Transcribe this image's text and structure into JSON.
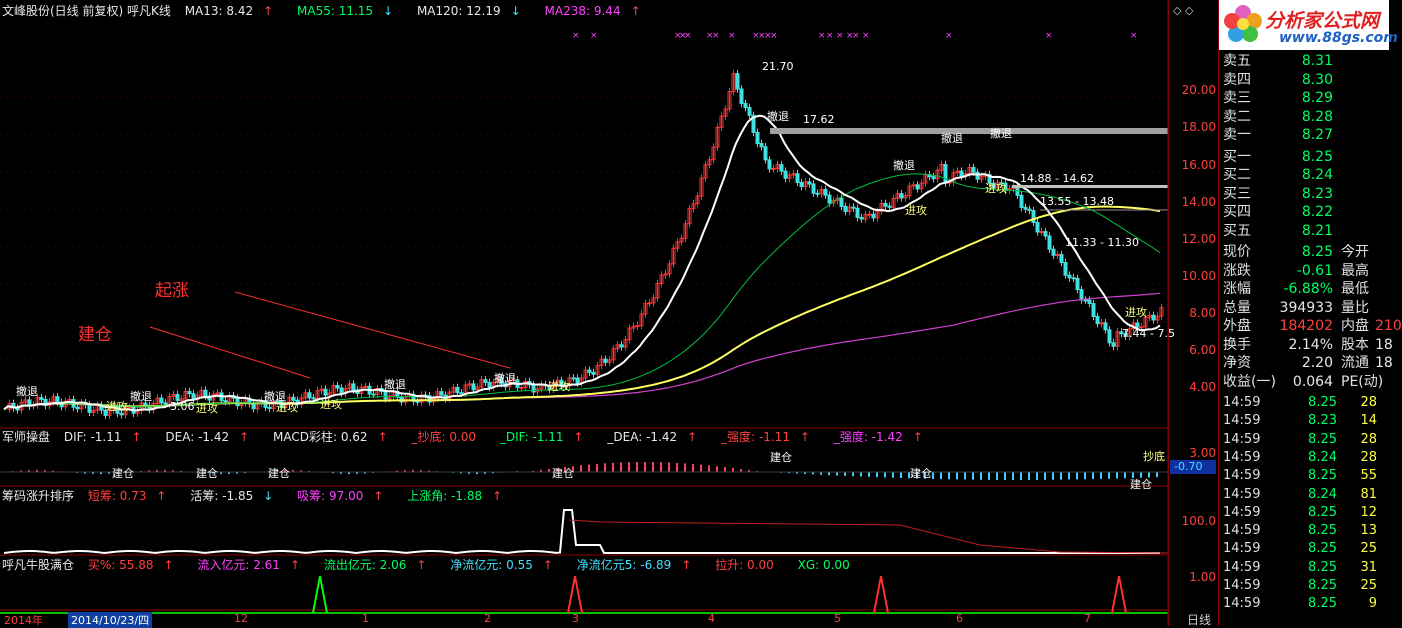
{
  "header": {
    "title": "文峰股份(日线 前复权) 呼凡K线",
    "ma13": "MA13: 8.42",
    "ma55": "MA55: 11.15",
    "ma120": "MA120: 12.19",
    "ma238": "MA238: 9.44"
  },
  "panel2": {
    "name": "军师操盘",
    "dif": "DIF: -1.11",
    "dea": "DEA: -1.42",
    "macd": "MACD彩柱: 0.62",
    "chaodi": "_抄底: 0.00",
    "dif2": "_DIF: -1.11",
    "dea2": "_DEA: -1.42",
    "qiangdu1": "_强度: -1.11",
    "qiangdu2": "_强度: -1.42",
    "axis_top": "3.00",
    "axis_val": "-0.70",
    "chaodi_label": "抄底"
  },
  "panel3": {
    "name": "筹码涨升排序",
    "duanchou": "短筹: 0.73",
    "huochou": "活筹: -1.85",
    "xichou": "吸筹: 97.00",
    "shangzhang": "上涨角: -1.88",
    "axis": "100.0"
  },
  "panel4": {
    "name": "呼凡牛股满仓",
    "mai": "买%: 55.88",
    "liuru": "流入亿元: 2.61",
    "liuchu": "流出亿元: 2.06",
    "jingliu": "净流亿元: 0.55",
    "jingliu5": "净流亿元5: -6.89",
    "lasheng": "拉升: 0.00",
    "xg": "XG: 0.00",
    "axis": "1.00"
  },
  "annotations": {
    "qizhang": "起涨",
    "jiancang": "建仓"
  },
  "chart_labels": {
    "peak": "21.70",
    "lvl1": "17.62",
    "lvl2": "14.88 - 14.62",
    "lvl3": "13.55 - 13.48",
    "lvl4": "11.33 - 11.30",
    "lvl5": "7.44 - 7.5",
    "low1": "3.06",
    "chetui": "撤退",
    "jingong": "进攻",
    "jiancang2": "建仓"
  },
  "price_axis": [
    "20.00",
    "18.00",
    "16.00",
    "14.00",
    "12.00",
    "10.00",
    "8.00",
    "6.00",
    "4.00"
  ],
  "x_axis": {
    "year": "2014年",
    "date": "2014/10/23/四",
    "months": [
      "12",
      "1",
      "2",
      "3",
      "4",
      "5",
      "6",
      "7"
    ],
    "period": "日线"
  },
  "logo": {
    "name": "分析家公式网",
    "url": "www.88gs.com"
  },
  "quote": {
    "sell": [
      {
        "label": "卖五",
        "price": "8.31"
      },
      {
        "label": "卖四",
        "price": "8.30"
      },
      {
        "label": "卖三",
        "price": "8.29"
      },
      {
        "label": "卖二",
        "price": "8.28"
      },
      {
        "label": "卖一",
        "price": "8.27"
      }
    ],
    "buy": [
      {
        "label": "买一",
        "price": "8.25"
      },
      {
        "label": "买二",
        "price": "8.24"
      },
      {
        "label": "买三",
        "price": "8.23"
      },
      {
        "label": "买四",
        "price": "8.22"
      },
      {
        "label": "买五",
        "price": "8.21"
      }
    ],
    "stats": [
      {
        "l1": "现价",
        "v1": "8.25",
        "l2": "今开",
        "c": "g"
      },
      {
        "l1": "涨跌",
        "v1": "-0.61",
        "l2": "最高",
        "c": "g"
      },
      {
        "l1": "涨幅",
        "v1": "-6.88%",
        "l2": "最低",
        "c": "g"
      },
      {
        "l1": "总量",
        "v1": "394933",
        "l2": "量比",
        "c": "w"
      },
      {
        "l1": "外盘",
        "v1": "184202",
        "l2": "内盘",
        "v2": "210",
        "c": "r"
      },
      {
        "l1": "换手",
        "v1": "2.14%",
        "l2": "股本",
        "v2": "18",
        "c": "w"
      },
      {
        "l1": "净资",
        "v1": "2.20",
        "l2": "流通",
        "v2": "18",
        "c": "w"
      },
      {
        "l1": "收益(一)",
        "v1": "0.064",
        "l2": "PE(动)",
        "c": "w"
      }
    ],
    "ticks": [
      {
        "t": "14:59",
        "p": "8.25",
        "v": "28"
      },
      {
        "t": "14:59",
        "p": "8.23",
        "v": "14"
      },
      {
        "t": "14:59",
        "p": "8.25",
        "v": "28"
      },
      {
        "t": "14:59",
        "p": "8.24",
        "v": "28"
      },
      {
        "t": "14:59",
        "p": "8.25",
        "v": "55"
      },
      {
        "t": "14:59",
        "p": "8.24",
        "v": "81"
      },
      {
        "t": "14:59",
        "p": "8.25",
        "v": "12"
      },
      {
        "t": "14:59",
        "p": "8.25",
        "v": "13"
      },
      {
        "t": "14:59",
        "p": "8.25",
        "v": "25"
      },
      {
        "t": "14:59",
        "p": "8.25",
        "v": "31"
      },
      {
        "t": "14:59",
        "p": "8.25",
        "v": "25"
      },
      {
        "t": "14:59",
        "p": "8.25",
        "v": "9"
      }
    ]
  },
  "colors": {
    "up": "#ff3030",
    "down": "#40e0e0",
    "ma13": "#ffffff",
    "ma55": "#00c040",
    "ma120": "#ffff60",
    "ma238": "#d040d0"
  }
}
